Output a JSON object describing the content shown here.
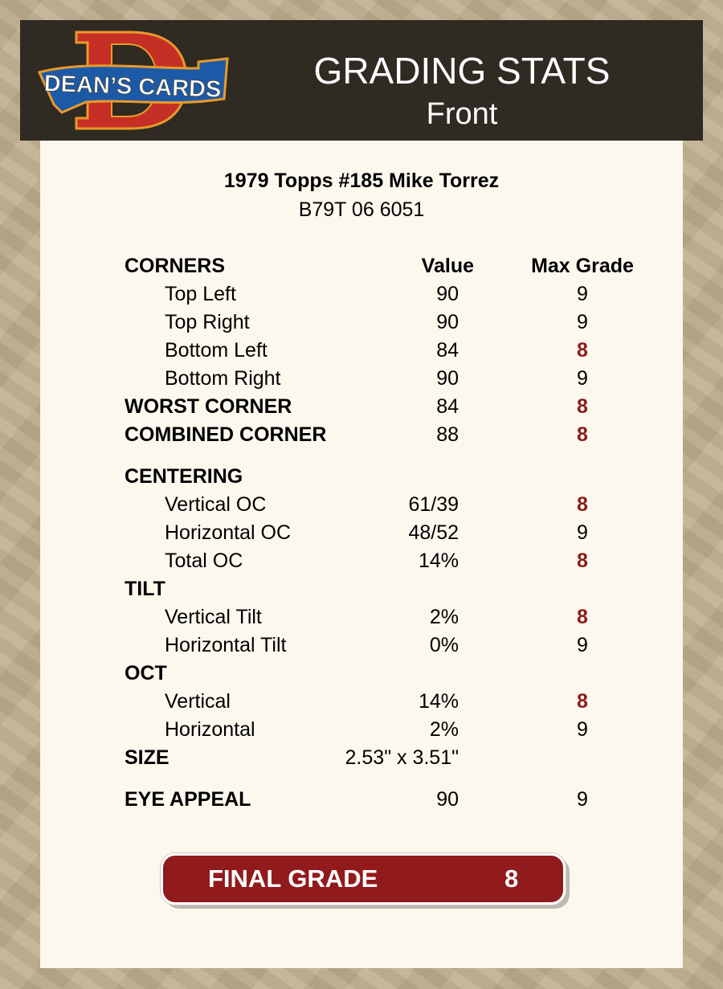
{
  "header": {
    "logo_text": "DEAN'S CARDS",
    "title": "GRADING STATS",
    "subtitle": "Front"
  },
  "card": {
    "name": "1979 Topps #185 Mike Torrez",
    "cert": "B79T 06 6051"
  },
  "columns": {
    "value": "Value",
    "max_grade": "Max Grade"
  },
  "rows": [
    {
      "type": "head",
      "label": "CORNERS",
      "value": "",
      "max": ""
    },
    {
      "type": "sub",
      "label": "Top Left",
      "value": "90",
      "max": "9"
    },
    {
      "type": "sub",
      "label": "Top Right",
      "value": "90",
      "max": "9"
    },
    {
      "type": "sub",
      "label": "Bottom Left",
      "value": "84",
      "max": "8",
      "low": true
    },
    {
      "type": "sub",
      "label": "Bottom Right",
      "value": "90",
      "max": "9"
    },
    {
      "type": "section",
      "label": "WORST CORNER",
      "value": "84",
      "max": "8",
      "low": true
    },
    {
      "type": "section",
      "label": "COMBINED CORNER",
      "value": "88",
      "max": "8",
      "low": true
    },
    {
      "type": "section",
      "label": "CENTERING",
      "value": "",
      "max": ""
    },
    {
      "type": "sub",
      "label": "Vertical OC",
      "value": "61/39",
      "max": "8",
      "low": true
    },
    {
      "type": "sub",
      "label": "Horizontal OC",
      "value": "48/52",
      "max": "9"
    },
    {
      "type": "sub",
      "label": "Total OC",
      "value": "14%",
      "max": "8",
      "low": true
    },
    {
      "type": "section",
      "label": "TILT",
      "value": "",
      "max": ""
    },
    {
      "type": "sub",
      "label": "Vertical Tilt",
      "value": "2%",
      "max": "8",
      "low": true
    },
    {
      "type": "sub",
      "label": "Horizontal Tilt",
      "value": "0%",
      "max": "9"
    },
    {
      "type": "section",
      "label": "OCT",
      "value": "",
      "max": ""
    },
    {
      "type": "sub",
      "label": "Vertical",
      "value": "14%",
      "max": "8",
      "low": true
    },
    {
      "type": "sub",
      "label": "Horizontal",
      "value": "2%",
      "max": "9"
    },
    {
      "type": "section",
      "label": "SIZE",
      "value": "2.53\" x 3.51\"",
      "max": ""
    },
    {
      "type": "section",
      "label": "EYE APPEAL",
      "value": "90",
      "max": "9"
    }
  ],
  "final": {
    "label": "FINAL GRADE",
    "value": "8"
  },
  "colors": {
    "header_bg": "#2f2a22",
    "panel_bg": "#fcf8ee",
    "low_grade": "#8b1c1c",
    "final_bg": "#911a1d"
  }
}
